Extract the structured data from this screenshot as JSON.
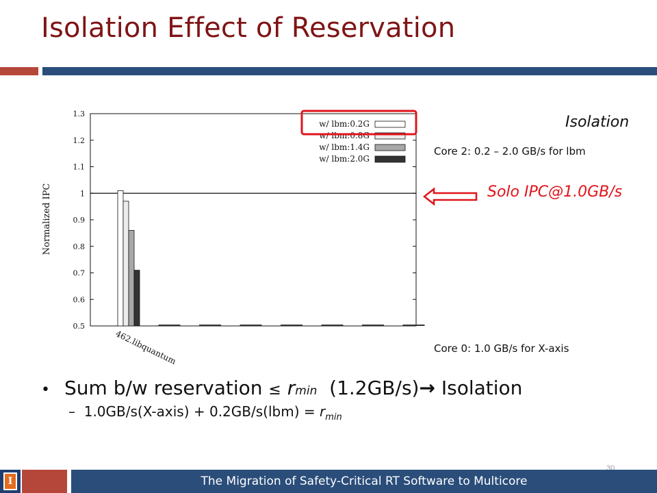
{
  "slide": {
    "title": "Isolation Effect of Reservation",
    "isolation_heading": "Isolation",
    "core2_text": "Core 2: 0.2 – 2.0 GB/s for lbm",
    "solo_text": "Solo IPC@1.0GB/s",
    "core0_text": "Core 0: 1.0 GB/s for X-axis",
    "bullet1_a": "Sum b/w reservation",
    "bullet1_le": "≤",
    "bullet1_r": "r",
    "bullet1_sub": "min",
    "bullet1_b": "(1.2GB/s)",
    "bullet1_arrow": "→",
    "bullet1_c": "Isolation",
    "bullet2_dash": "–",
    "bullet2_text": "1.0GB/s(X-axis) + 0.2GB/s(lbm) = ",
    "bullet2_r": "r",
    "bullet2_sub": "min",
    "footer_text": "The Migration of Safety-Critical RT Software to Multicore",
    "page_number": "30",
    "logo_letter": "I"
  },
  "colors": {
    "title": "#7f1416",
    "accent_red": "#b5473a",
    "accent_blue": "#2a4d7a",
    "highlight": "#e0141b"
  },
  "chart_data": {
    "type": "bar",
    "ylabel": "Normalized IPC",
    "ylim": [
      0.5,
      1.3
    ],
    "yticks": [
      "0.5",
      "0.6",
      "0.7",
      "0.8",
      "0.9",
      "1",
      "1.1",
      "1.2",
      "1.3"
    ],
    "categories": [
      "462.libquantum",
      "",
      "",
      "",
      "",
      "",
      "",
      ""
    ],
    "reference_line": 1.0,
    "series": [
      {
        "name": "w/ lbm:0.2G",
        "fill": "#ffffff",
        "values": [
          1.01,
          0.5,
          0.5,
          0.5,
          0.5,
          0.5,
          0.5,
          0.5
        ]
      },
      {
        "name": "w/ lbm:0.8G",
        "fill": "#ececec",
        "values": [
          0.97,
          0.5,
          0.5,
          0.5,
          0.5,
          0.5,
          0.5,
          0.5
        ]
      },
      {
        "name": "w/ lbm:1.4G",
        "fill": "#a8a8a8",
        "values": [
          0.86,
          0.5,
          0.5,
          0.5,
          0.5,
          0.5,
          0.5,
          0.5
        ]
      },
      {
        "name": "w/ lbm:2.0G",
        "fill": "#333333",
        "values": [
          0.71,
          0.5,
          0.5,
          0.5,
          0.5,
          0.5,
          0.5,
          0.5
        ]
      }
    ],
    "legend_position": "top-right",
    "highlighted_legend_entry": "w/ lbm:0.2G"
  }
}
